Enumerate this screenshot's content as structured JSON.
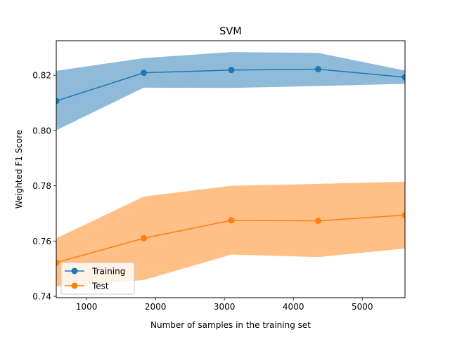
{
  "chart_data": {
    "type": "line",
    "title": "SVM",
    "xlabel": "Number of samples in the training set",
    "ylabel": "Weighted F1 Score",
    "xlim": [
      560,
      5620
    ],
    "ylim": [
      0.7395,
      0.8325
    ],
    "xticks": [
      1000,
      2000,
      3000,
      4000,
      5000
    ],
    "xtick_labels": [
      "1000",
      "2000",
      "3000",
      "4000",
      "5000"
    ],
    "yticks": [
      0.74,
      0.76,
      0.78,
      0.8,
      0.82
    ],
    "ytick_labels": [
      "0.74",
      "0.76",
      "0.78",
      "0.80",
      "0.82"
    ],
    "x": [
      560,
      1830,
      3100,
      4360,
      5620
    ],
    "series": [
      {
        "name": "Training",
        "color": "#1f77b4",
        "band_color": "#1f77b4",
        "values": [
          0.8107,
          0.8209,
          0.8219,
          0.8222,
          0.8193
        ],
        "lower": [
          0.8001,
          0.8155,
          0.8154,
          0.8161,
          0.8169
        ],
        "upper": [
          0.8216,
          0.8262,
          0.8284,
          0.8281,
          0.8217
        ]
      },
      {
        "name": "Test",
        "color": "#ff7f0e",
        "band_color": "#ff7f0e",
        "values": [
          0.7522,
          0.761,
          0.7675,
          0.7673,
          0.7694
        ],
        "lower": [
          0.7436,
          0.7459,
          0.7551,
          0.7542,
          0.7573
        ],
        "upper": [
          0.761,
          0.7761,
          0.78,
          0.7807,
          0.7815
        ]
      }
    ],
    "legend": {
      "position": "lower-left",
      "entries": [
        "Training",
        "Test"
      ]
    }
  }
}
